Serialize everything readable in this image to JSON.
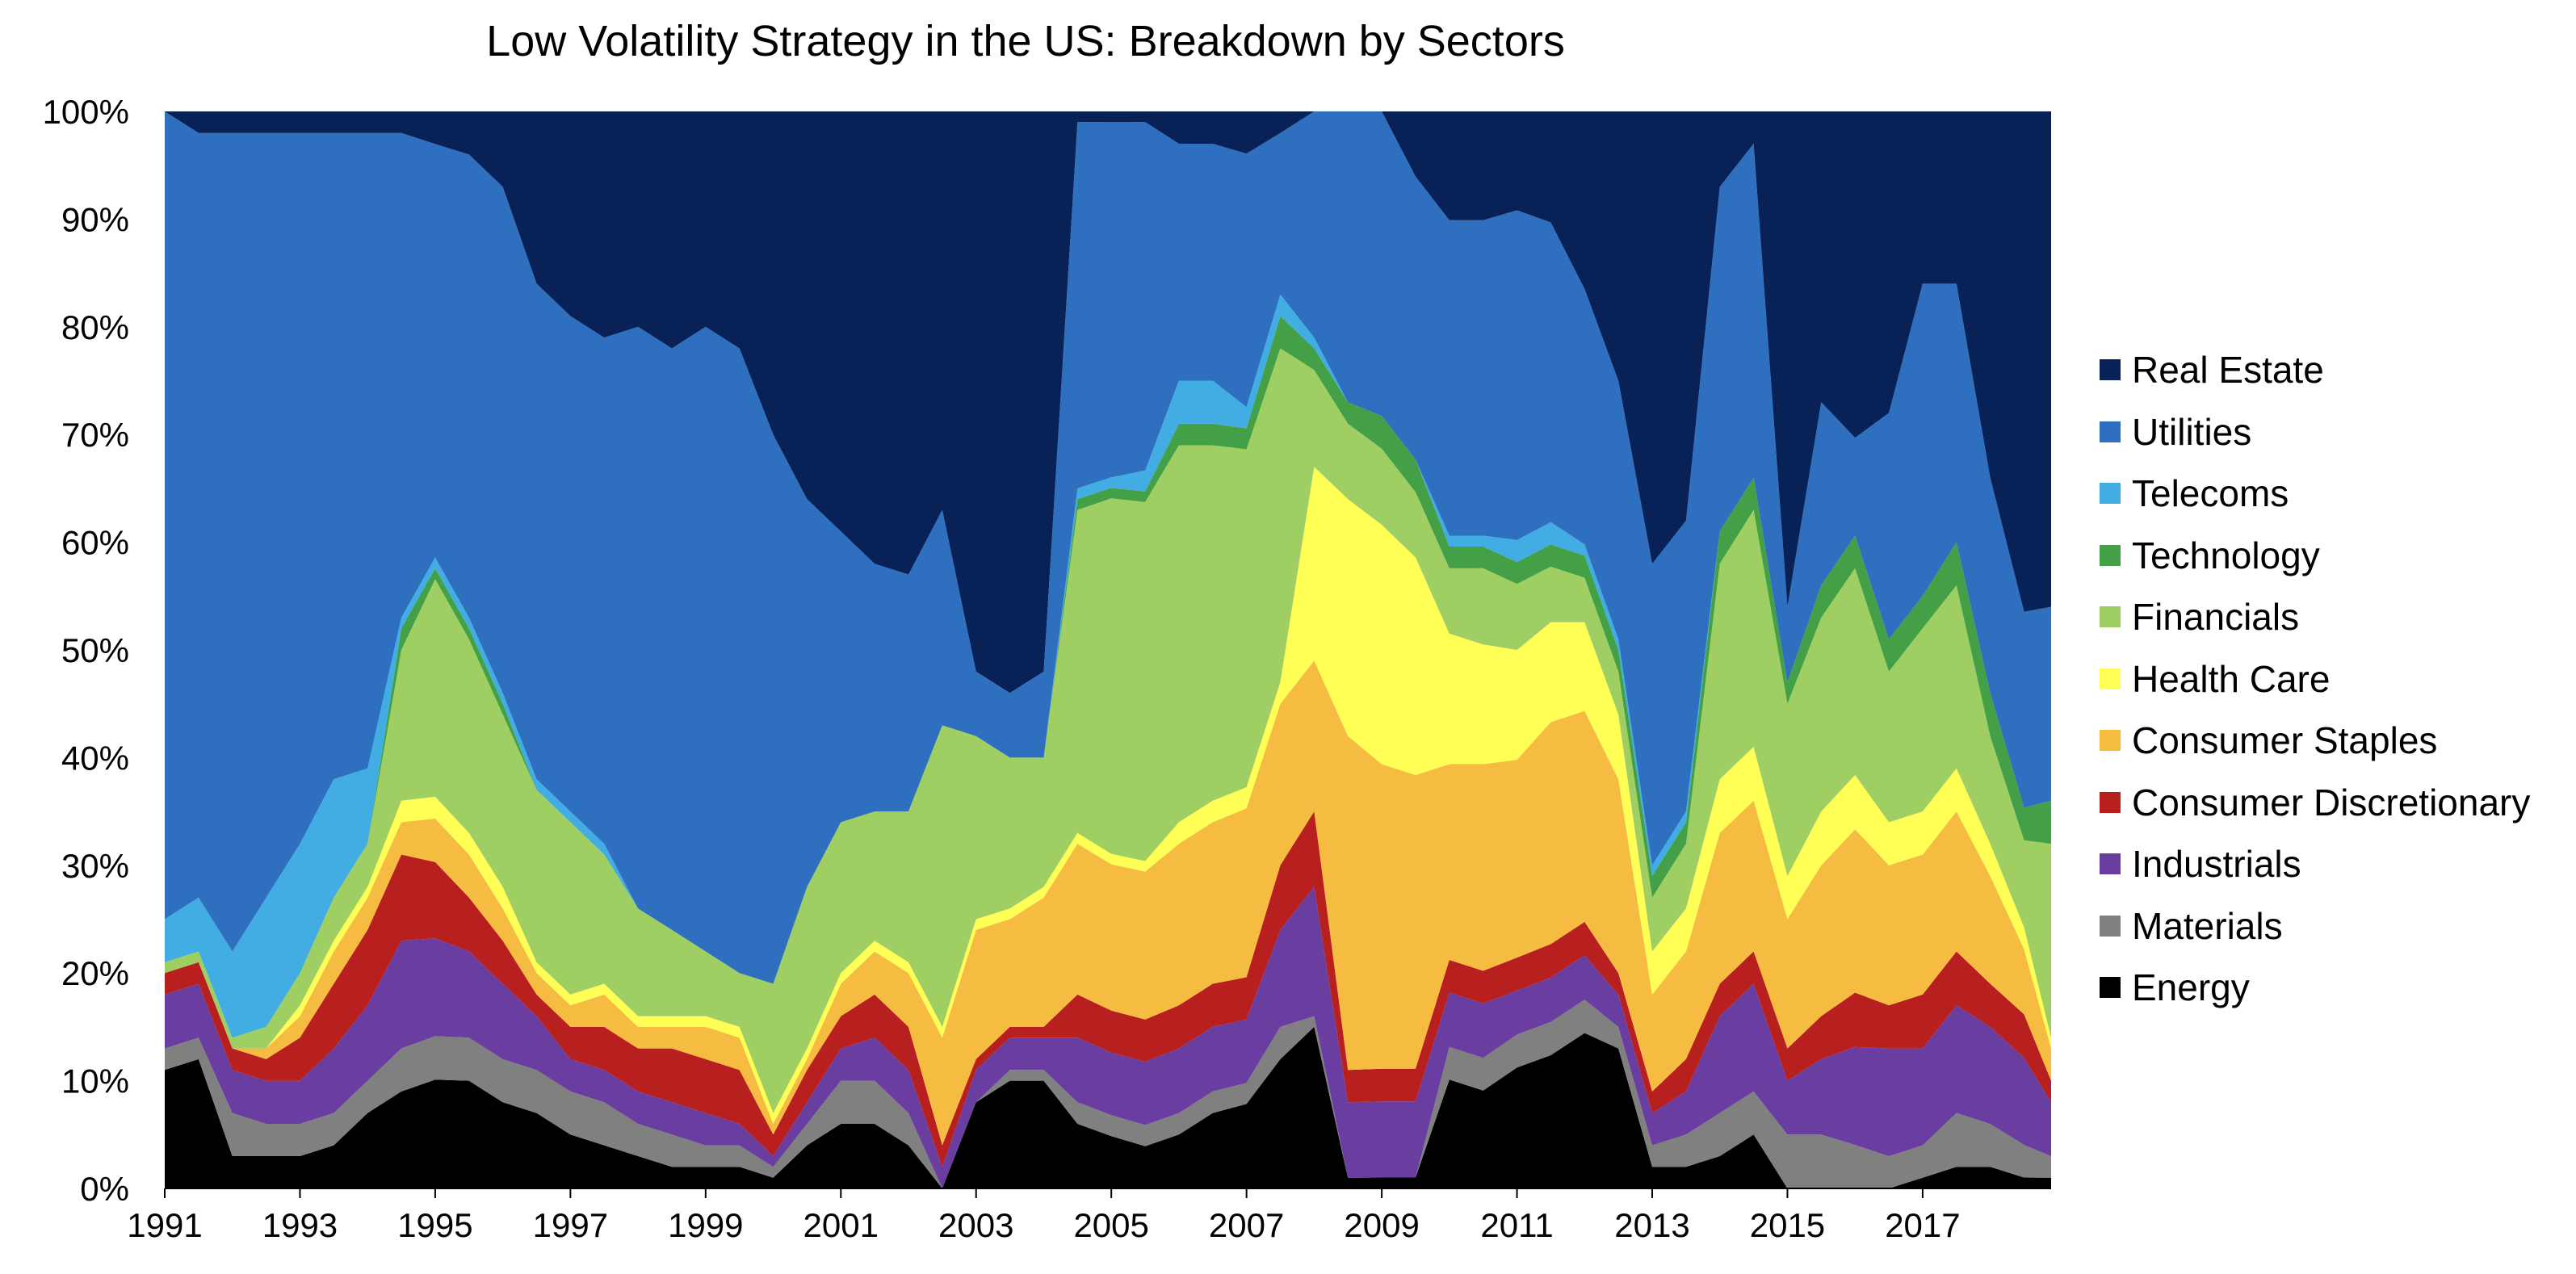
{
  "chart_data": {
    "type": "area",
    "stacked": true,
    "normalized": true,
    "title": "Low Volatility Strategy in the US: Breakdown by Sectors",
    "xlabel": "",
    "ylabel": "",
    "x_tick_labels": [
      "1991",
      "1993",
      "1995",
      "1997",
      "1999",
      "2001",
      "2003",
      "2005",
      "2007",
      "2009",
      "2011",
      "2013",
      "2015",
      "2017"
    ],
    "x_ticks": [
      1991,
      1993,
      1995,
      1997,
      1999,
      2001,
      2003,
      2005,
      2007,
      2009,
      2011,
      2013,
      2015,
      2017
    ],
    "y_tick_labels": [
      "0%",
      "10%",
      "20%",
      "30%",
      "40%",
      "50%",
      "60%",
      "70%",
      "80%",
      "90%",
      "100%"
    ],
    "xlim": [
      1991,
      2018.9
    ],
    "ylim": [
      0,
      100
    ],
    "grid": false,
    "legend_position": "right",
    "x": [
      1991.0,
      1991.5,
      1992.0,
      1992.5,
      1993.0,
      1993.5,
      1994.0,
      1994.5,
      1995.0,
      1995.5,
      1996.0,
      1996.5,
      1997.0,
      1997.5,
      1998.0,
      1998.5,
      1999.0,
      1999.5,
      2000.0,
      2000.5,
      2001.0,
      2001.5,
      2002.0,
      2002.5,
      2003.0,
      2003.5,
      2004.0,
      2004.5,
      2005.0,
      2005.5,
      2006.0,
      2006.5,
      2007.0,
      2007.5,
      2008.0,
      2008.5,
      2009.0,
      2009.5,
      2010.0,
      2010.5,
      2011.0,
      2011.5,
      2012.0,
      2012.5,
      2013.0,
      2013.5,
      2014.0,
      2014.5,
      2015.0,
      2015.5,
      2016.0,
      2016.5,
      2017.0,
      2017.5,
      2018.0,
      2018.5,
      2018.9
    ],
    "series": [
      {
        "name": "Energy",
        "color": "#000000",
        "values": [
          11,
          12,
          3,
          3,
          3,
          4,
          7,
          9,
          10,
          10,
          8,
          7,
          5,
          4,
          3,
          2,
          2,
          2,
          1,
          4,
          6,
          6,
          4,
          0,
          8,
          10,
          10,
          6,
          5,
          4,
          5,
          7,
          8,
          12,
          15,
          1,
          1,
          1,
          10,
          9,
          11,
          12,
          14,
          13,
          2,
          2,
          3,
          5,
          0,
          0,
          0,
          0,
          1,
          2,
          2,
          1,
          1
        ]
      },
      {
        "name": "Materials",
        "color": "#808080",
        "values": [
          2,
          2,
          4,
          3,
          3,
          3,
          3,
          4,
          4,
          4,
          4,
          4,
          4,
          4,
          3,
          3,
          2,
          2,
          1,
          2,
          4,
          4,
          3,
          0,
          0,
          1,
          1,
          2,
          2,
          2,
          2,
          2,
          2,
          3,
          1,
          0,
          0,
          0,
          3,
          3,
          3,
          3,
          3,
          2,
          2,
          3,
          4,
          4,
          5,
          5,
          4,
          3,
          3,
          5,
          4,
          3,
          2
        ]
      },
      {
        "name": "Industrials",
        "color": "#6a3da0",
        "values": [
          5,
          5,
          4,
          4,
          4,
          6,
          7,
          10,
          9,
          8,
          7,
          5,
          3,
          3,
          3,
          3,
          3,
          2,
          1,
          2,
          3,
          4,
          4,
          2,
          3,
          3,
          3,
          6,
          6,
          6,
          6,
          6,
          6,
          9,
          12,
          7,
          7,
          7,
          5,
          5,
          4,
          4,
          4,
          3,
          3,
          4,
          9,
          10,
          5,
          7,
          9,
          10,
          9,
          10,
          9,
          8,
          5
        ]
      },
      {
        "name": "Consumer Discretionary",
        "color": "#b81f1f",
        "values": [
          2,
          2,
          2,
          2,
          4,
          6,
          7,
          8,
          7,
          5,
          4,
          2,
          3,
          4,
          4,
          5,
          5,
          5,
          2,
          3,
          3,
          4,
          4,
          2,
          1,
          1,
          1,
          4,
          4,
          4,
          4,
          4,
          4,
          6,
          7,
          3,
          3,
          3,
          3,
          3,
          3,
          3,
          3,
          2,
          2,
          3,
          3,
          3,
          3,
          4,
          5,
          4,
          5,
          5,
          4,
          4,
          2
        ]
      },
      {
        "name": "Consumer Staples",
        "color": "#f6bc41",
        "values": [
          0,
          0,
          0,
          1,
          2,
          3,
          3,
          3,
          4,
          4,
          3,
          2,
          2,
          3,
          2,
          2,
          3,
          3,
          1,
          1,
          3,
          4,
          5,
          10,
          12,
          10,
          12,
          14,
          14,
          14,
          15,
          15,
          16,
          15,
          14,
          31,
          28,
          27,
          18,
          19,
          18,
          20,
          19,
          18,
          9,
          10,
          14,
          14,
          12,
          14,
          15,
          13,
          13,
          13,
          10,
          6,
          3
        ]
      },
      {
        "name": "Health Care",
        "color": "#ffff55",
        "values": [
          0,
          0,
          0,
          0,
          1,
          1,
          1,
          2,
          2,
          2,
          2,
          1,
          1,
          1,
          1,
          1,
          1,
          1,
          1,
          1,
          1,
          1,
          1,
          1,
          1,
          1,
          1,
          1,
          1,
          1,
          2,
          2,
          2,
          2,
          18,
          22,
          22,
          20,
          12,
          11,
          10,
          9,
          8,
          6,
          4,
          4,
          5,
          5,
          4,
          5,
          5,
          4,
          4,
          4,
          3,
          2,
          1
        ]
      },
      {
        "name": "Financials",
        "color": "#9fcf62",
        "values": [
          1,
          1,
          1,
          2,
          3,
          4,
          4,
          14,
          20,
          18,
          16,
          16,
          16,
          12,
          10,
          8,
          6,
          5,
          12,
          15,
          14,
          12,
          14,
          28,
          17,
          14,
          12,
          30,
          34,
          34,
          35,
          33,
          32,
          31,
          9,
          7,
          7,
          6,
          6,
          7,
          6,
          5,
          4,
          4,
          5,
          6,
          20,
          22,
          16,
          18,
          19,
          14,
          17,
          17,
          10,
          8,
          18
        ]
      },
      {
        "name": "Technology",
        "color": "#43a047",
        "values": [
          0,
          0,
          0,
          0,
          0,
          0,
          0,
          2,
          1,
          1,
          1,
          0,
          0,
          0,
          0,
          0,
          0,
          0,
          0,
          0,
          0,
          0,
          0,
          0,
          0,
          0,
          0,
          1,
          1,
          1,
          2,
          2,
          2,
          3,
          2,
          2,
          3,
          3,
          2,
          2,
          2,
          2,
          2,
          2,
          2,
          2,
          3,
          3,
          2,
          3,
          3,
          3,
          3,
          4,
          4,
          3,
          4
        ]
      },
      {
        "name": "Telecoms",
        "color": "#41ade2",
        "values": [
          4,
          5,
          8,
          12,
          12,
          11,
          7,
          1,
          1,
          1,
          1,
          1,
          1,
          1,
          0,
          0,
          0,
          0,
          0,
          0,
          0,
          0,
          0,
          0,
          0,
          0,
          0,
          1,
          1,
          2,
          4,
          4,
          2,
          2,
          1,
          0,
          0,
          0,
          1,
          1,
          2,
          2,
          1,
          1,
          1,
          1,
          0,
          0,
          0,
          0,
          0,
          0,
          0,
          0,
          0,
          0,
          0
        ]
      },
      {
        "name": "Utilities",
        "color": "#2f6fc0",
        "values": [
          75,
          71,
          76,
          71,
          66,
          60,
          59,
          45,
          38,
          43,
          47,
          46,
          46,
          47,
          54,
          54,
          58,
          58,
          51,
          36,
          27,
          23,
          22,
          20,
          6,
          6,
          8,
          34,
          34,
          33,
          22,
          22,
          24,
          15,
          21,
          27,
          28,
          26,
          29,
          29,
          30,
          27,
          23,
          24,
          28,
          27,
          32,
          31,
          7,
          17,
          9,
          21,
          29,
          24,
          20,
          18,
          18
        ]
      },
      {
        "name": "Real Estate",
        "color": "#082157",
        "values": [
          0,
          2,
          2,
          2,
          2,
          2,
          2,
          2,
          3,
          4,
          7,
          16,
          19,
          21,
          20,
          22,
          20,
          22,
          30,
          36,
          39,
          42,
          43,
          37,
          52,
          54,
          52,
          1,
          1,
          1,
          3,
          3,
          4,
          2,
          0,
          0,
          0,
          6,
          10,
          10,
          9,
          10,
          16,
          25,
          42,
          38,
          7,
          3,
          46,
          27,
          30,
          28,
          16,
          16,
          34,
          46,
          46
        ]
      }
    ]
  }
}
